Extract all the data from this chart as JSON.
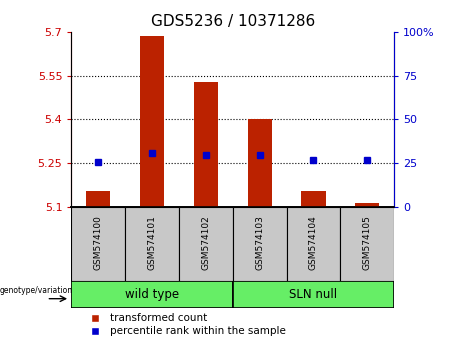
{
  "title": "GDS5236 / 10371286",
  "samples": [
    "GSM574100",
    "GSM574101",
    "GSM574102",
    "GSM574103",
    "GSM574104",
    "GSM574105"
  ],
  "red_bar_top": [
    5.155,
    5.685,
    5.53,
    5.4,
    5.155,
    5.115
  ],
  "red_bar_bottom": 5.1,
  "blue_square_percentile": [
    26,
    31,
    30,
    30,
    27,
    27
  ],
  "ylim": [
    5.1,
    5.7
  ],
  "yticks_left": [
    5.1,
    5.25,
    5.4,
    5.55,
    5.7
  ],
  "yticks_right": [
    0,
    25,
    50,
    75,
    100
  ],
  "yticks_right_labels": [
    "0",
    "25",
    "50",
    "75",
    "100%"
  ],
  "hlines": [
    5.25,
    5.4,
    5.55
  ],
  "left_color": "#cc0000",
  "right_color": "#0000cc",
  "bar_color": "#bb2200",
  "square_color": "#0000cc",
  "group_box_color": "#c8c8c8",
  "genotype_label": "genotype/variation",
  "wt_label": "wild type",
  "sln_label": "SLN null",
  "group_color": "#66ee66",
  "legend_red": "transformed count",
  "legend_blue": "percentile rank within the sample",
  "title_fontsize": 11,
  "tick_fontsize": 8,
  "bar_width": 0.45
}
